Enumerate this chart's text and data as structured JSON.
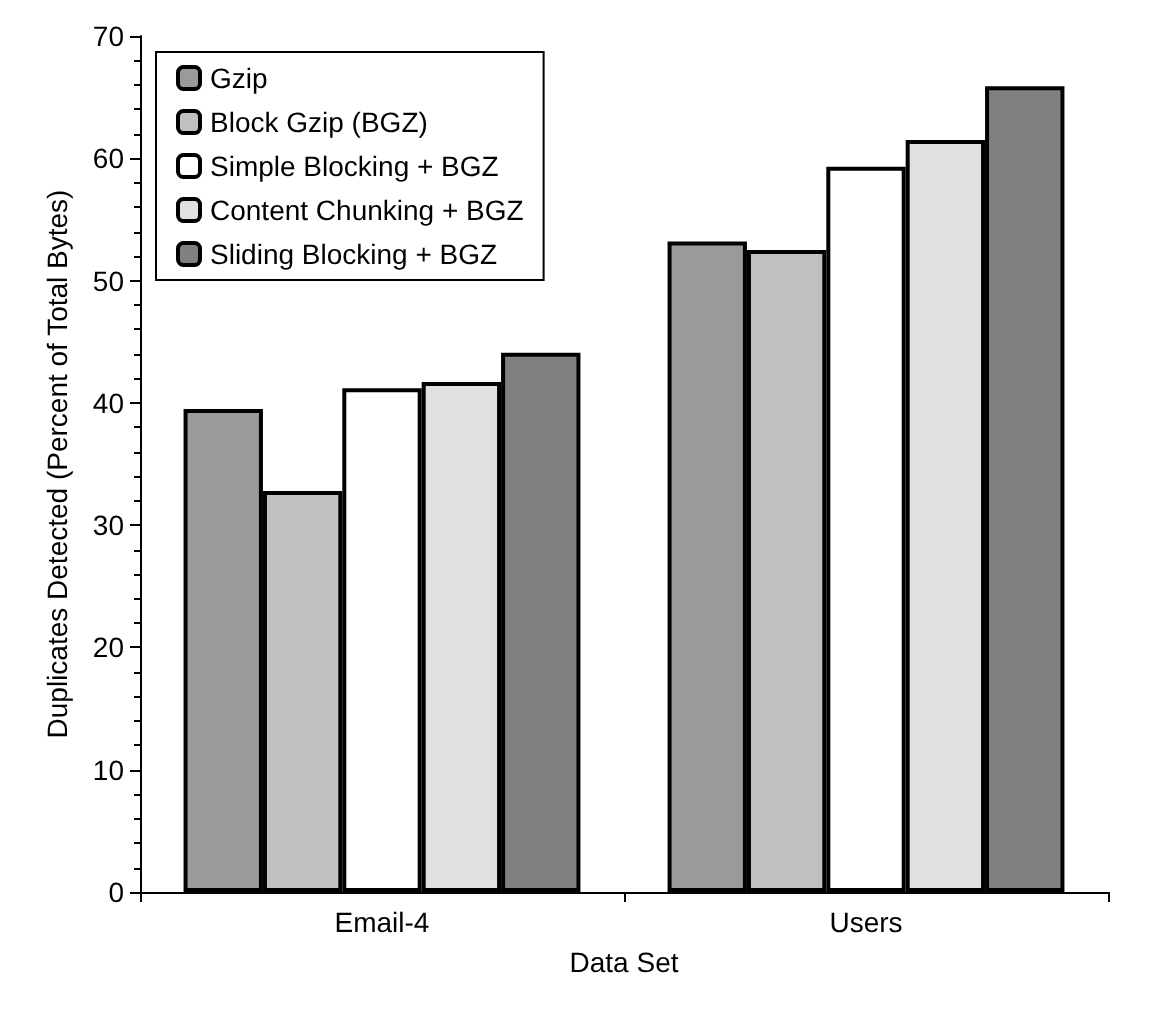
{
  "chart_data": {
    "type": "bar",
    "xlabel": "Data Set",
    "ylabel": "Duplicates Detected (Percent of Total Bytes)",
    "categories": [
      "Email-4",
      "Users"
    ],
    "series": [
      {
        "name": "Gzip",
        "color": "#9a9a9a",
        "values": [
          39.5,
          53.2
        ]
      },
      {
        "name": "Block Gzip (BGZ)",
        "color": "#c0c0c0",
        "values": [
          32.8,
          52.5
        ]
      },
      {
        "name": "Simple Blocking + BGZ",
        "color": "#ffffff",
        "values": [
          41.2,
          59.3
        ]
      },
      {
        "name": "Content Chunking + BGZ",
        "color": "#e0e0e0",
        "values": [
          41.7,
          61.5
        ]
      },
      {
        "name": "Sliding Blocking + BGZ",
        "color": "#808080",
        "values": [
          44.1,
          65.9
        ]
      }
    ],
    "ylim": [
      0,
      70
    ],
    "yticks": [
      0,
      10,
      20,
      30,
      40,
      50,
      60,
      70
    ],
    "grid": false,
    "legend": "top left"
  }
}
